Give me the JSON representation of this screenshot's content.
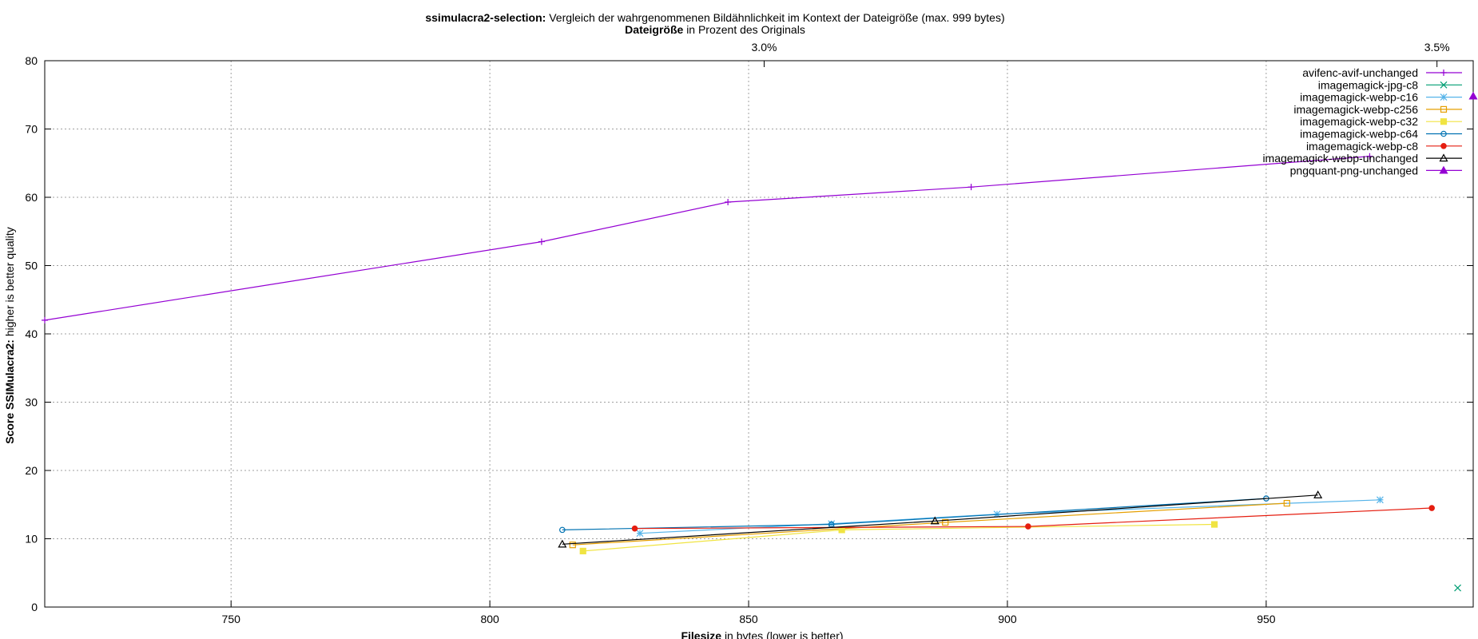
{
  "chart_data": {
    "type": "line",
    "title_bold": "ssimulacra2-selection:",
    "title_rest": "Vergleich der wahrgenommenen Bildähnlichkeit im Kontext der Dateigröße (max. 999 bytes)",
    "x2label_bold": "Dateigröße",
    "x2label_rest": "in Prozent des Originals",
    "xlabel_bold": "Filesize",
    "xlabel_rest": "in bytes (lower is better)",
    "ylabel_bold": "Score SSIMulacra2:",
    "ylabel_rest": "higher is better quality",
    "xlim": [
      714,
      990
    ],
    "ylim": [
      0,
      80
    ],
    "x_ticks": [
      750,
      800,
      850,
      900,
      950
    ],
    "y_ticks": [
      0,
      10,
      20,
      30,
      40,
      50,
      60,
      70,
      80
    ],
    "x2_ticks": [
      {
        "x": 853,
        "label": "3.0%"
      },
      {
        "x": 983,
        "label": "3.5%"
      }
    ],
    "grid": true,
    "legend_position": "top-right",
    "series": [
      {
        "name": "avifenc-avif-unchanged",
        "color": "#9400d3",
        "marker": "plus",
        "points": [
          [
            714,
            42
          ],
          [
            810,
            53.5
          ],
          [
            846,
            59.3
          ],
          [
            893,
            61.5
          ],
          [
            970,
            66
          ]
        ]
      },
      {
        "name": "imagemagick-jpg-c8",
        "color": "#009e73",
        "marker": "cross",
        "points": [
          [
            987,
            2.8
          ]
        ]
      },
      {
        "name": "imagemagick-webp-c16",
        "color": "#56b4e9",
        "marker": "star",
        "points": [
          [
            829,
            10.8
          ],
          [
            866,
            12.2
          ],
          [
            898,
            13.6
          ],
          [
            972,
            15.7
          ]
        ]
      },
      {
        "name": "imagemagick-webp-c256",
        "color": "#e69f00",
        "marker": "square-open",
        "points": [
          [
            816,
            9.1
          ],
          [
            888,
            12.4
          ],
          [
            954,
            15.2
          ]
        ]
      },
      {
        "name": "imagemagick-webp-c32",
        "color": "#f0e442",
        "marker": "square-filled",
        "points": [
          [
            818,
            8.2
          ],
          [
            868,
            11.3
          ],
          [
            940,
            12.1
          ]
        ]
      },
      {
        "name": "imagemagick-webp-c64",
        "color": "#0072b2",
        "marker": "circle-open",
        "points": [
          [
            814,
            11.3
          ],
          [
            866,
            12.1
          ],
          [
            950,
            15.9
          ]
        ]
      },
      {
        "name": "imagemagick-webp-c8",
        "color": "#e51e10",
        "marker": "circle-filled",
        "points": [
          [
            828,
            11.5
          ],
          [
            904,
            11.8
          ],
          [
            982,
            14.5
          ]
        ]
      },
      {
        "name": "imagemagick-webp-unchanged",
        "color": "#000000",
        "marker": "triangle-open",
        "points": [
          [
            814,
            9.2
          ],
          [
            886,
            12.6
          ],
          [
            960,
            16.4
          ]
        ]
      },
      {
        "name": "pngquant-png-unchanged",
        "color": "#9400d3",
        "marker": "triangle-filled",
        "points": [
          [
            990,
            74.8
          ]
        ]
      }
    ]
  }
}
